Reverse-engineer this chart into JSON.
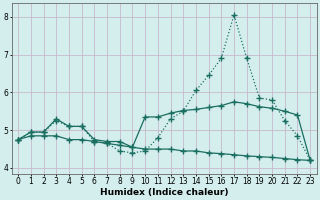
{
  "xlabel": "Humidex (Indice chaleur)",
  "bg_color": "#d4eeee",
  "grid_color": "#c8b8cc",
  "line_color": "#1a6e60",
  "xlim": [
    -0.5,
    23.5
  ],
  "ylim": [
    3.85,
    8.35
  ],
  "yticks": [
    4,
    5,
    6,
    7,
    8
  ],
  "xticks": [
    0,
    1,
    2,
    3,
    4,
    5,
    6,
    7,
    8,
    9,
    10,
    11,
    12,
    13,
    14,
    15,
    16,
    17,
    18,
    19,
    20,
    21,
    22,
    23
  ],
  "series_spike_x": [
    0,
    1,
    2,
    3,
    4,
    5,
    6,
    7,
    8,
    9,
    10,
    11,
    12,
    13,
    14,
    15,
    16,
    17,
    18,
    19,
    20,
    21,
    22,
    23
  ],
  "series_spike_y": [
    4.75,
    4.95,
    4.95,
    5.25,
    5.1,
    5.1,
    4.7,
    4.65,
    4.45,
    4.4,
    4.45,
    4.8,
    5.3,
    5.5,
    6.05,
    6.45,
    6.9,
    8.05,
    6.9,
    5.85,
    5.8,
    5.25,
    4.85,
    4.2
  ],
  "series_flat_x": [
    0,
    1,
    2,
    3,
    4,
    5,
    6,
    7,
    8,
    9,
    10,
    11,
    12,
    13,
    14,
    15,
    16,
    17,
    18,
    19,
    20,
    21,
    22,
    23
  ],
  "series_flat_y": [
    4.75,
    4.85,
    4.85,
    4.85,
    4.75,
    4.75,
    4.7,
    4.65,
    4.6,
    4.55,
    4.5,
    4.5,
    4.5,
    4.45,
    4.45,
    4.4,
    4.38,
    4.35,
    4.32,
    4.3,
    4.28,
    4.25,
    4.22,
    4.2
  ],
  "series_mid_x": [
    0,
    1,
    2,
    3,
    4,
    5,
    6,
    7,
    8,
    9,
    10,
    11,
    12,
    13,
    14,
    15,
    16,
    17,
    18,
    19,
    20,
    21,
    22,
    23
  ],
  "series_mid_y": [
    4.75,
    4.95,
    4.95,
    5.3,
    5.1,
    5.1,
    4.75,
    4.7,
    4.7,
    4.55,
    5.35,
    5.35,
    5.45,
    5.52,
    5.55,
    5.6,
    5.65,
    5.75,
    5.7,
    5.62,
    5.58,
    5.5,
    5.4,
    4.2
  ]
}
